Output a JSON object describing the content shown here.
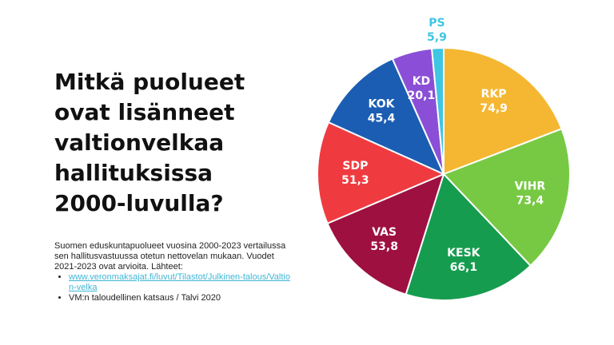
{
  "chart_data": {
    "type": "pie",
    "title": [
      "Mitkä puolueet",
      "ovat lisänneet",
      "valtionvelkaa",
      "hallituksissa",
      "2000-luvulla?"
    ],
    "description": "Suomen eduskuntapuolueet vuosina 2000-2023 vertailussa sen hallitusvastuussa otetun nettovelan mukaan. Vuodet 2021-2023 ovat arvioita. Lähteet:",
    "sources": [
      "www.veronmaksajat.fi/luvut/Tilastot/Julkinen-talous/Valtion-velka",
      "VM:n taloudellinen katsaus / Talvi 2020"
    ],
    "categories": [
      "RKP",
      "VIHR",
      "KESK",
      "VAS",
      "SDP",
      "KOK",
      "KD",
      "PS"
    ],
    "values": [
      74.9,
      73.4,
      66.1,
      53.8,
      51.3,
      45.4,
      20.1,
      5.9
    ],
    "value_labels": [
      "74,9",
      "73,4",
      "66,1",
      "53,8",
      "51,3",
      "45,4",
      "20,1",
      "5,9"
    ],
    "colors": [
      "#f5b731",
      "#77c944",
      "#169c4f",
      "#9e1040",
      "#ef3b40",
      "#1b5db3",
      "#8a4fd6",
      "#3fc6e2"
    ]
  }
}
